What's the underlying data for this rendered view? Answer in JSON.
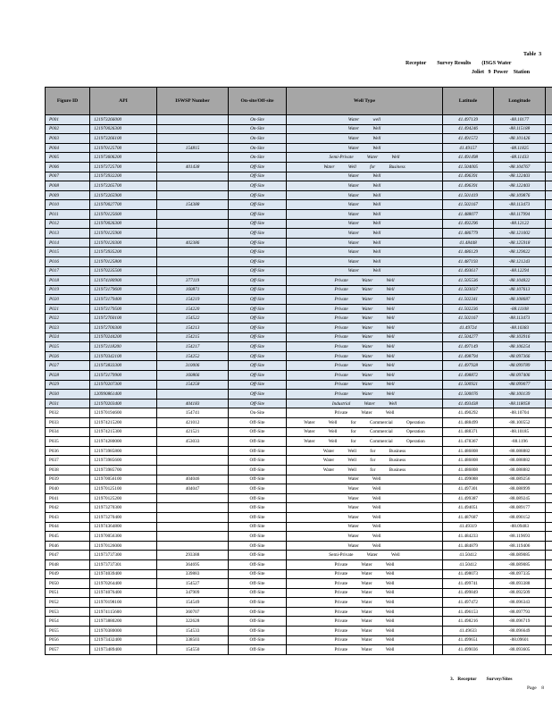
{
  "header": {
    "table_label": "Table  3",
    "title_line1": "Receptor        Survey Results        (ISGS Water",
    "title_line2": "Joliet   9  Power    Station"
  },
  "columns": [
    "Figure   ID",
    "API",
    "ISWSP    Number",
    "On-site/Off-site",
    "Well   Type",
    "Latitude",
    "Longitude",
    ""
  ],
  "rows": [
    [
      "P001",
      "121973266000",
      "",
      "On-Site",
      "Water well",
      "41.497139",
      "-88.10177"
    ],
    [
      "P002",
      "121970026300",
      "",
      "On-Site",
      "Water Well",
      "41.494246",
      "-88.115188"
    ],
    [
      "P003",
      "121973266100",
      "",
      "On-Site",
      "Water Well",
      "41.491572",
      "-88.101426"
    ],
    [
      "P004",
      "121970125700",
      "154815",
      "On-Site",
      "Water Well",
      "41.49157",
      "-88.11825"
    ],
    [
      "P005",
      "121973606200",
      "",
      "On-Site",
      "Semi-Private Water Well",
      "41.491498",
      "-88.11433"
    ],
    [
      "P006",
      "121973725700",
      "401438",
      "Off-Site",
      "Water Well for Business",
      "41.504005",
      "-88.104767"
    ],
    [
      "P007",
      "121973932200",
      "",
      "Off-Site",
      "Water Well",
      "41.496391",
      "-88.122403"
    ],
    [
      "P008",
      "121973265700",
      "",
      "Off-Site",
      "Water Well",
      "41.496391",
      "-88.122403"
    ],
    [
      "P009",
      "121973265900",
      "",
      "Off-Site",
      "Water Well",
      "41.501419",
      "-88.109876"
    ],
    [
      "P010",
      "121970027700",
      "154388",
      "Off-Site",
      "Water Well",
      "41.502167",
      "-88.113473"
    ],
    [
      "P011",
      "121970125600",
      "",
      "Off-Site",
      "Water Well",
      "41.488077",
      "-88.117994"
    ],
    [
      "P012",
      "121970026300",
      "",
      "Off-Site",
      "Water Well",
      "41.492296",
      "-88.12122"
    ],
    [
      "P013",
      "121970125900",
      "",
      "Off-Site",
      "Water Well",
      "41.486779",
      "-88.121002"
    ],
    [
      "P014",
      "121970120300",
      "402386",
      "Off-Site",
      "Water Well",
      "41.48448",
      "-88.125918"
    ],
    [
      "P015",
      "121973935200",
      "",
      "Off-Site",
      "Water Well",
      "41.486129",
      "-88.129022"
    ],
    [
      "P016",
      "121970125800",
      "",
      "Off-Site",
      "Water Well",
      "41.487193",
      "-88.121243"
    ],
    [
      "P017",
      "121970235500",
      "",
      "Off-Site",
      "Water Well",
      "41.493617",
      "-88.12294"
    ],
    [
      "P018",
      "121974180900",
      "377119",
      "Off-Site",
      "Private Water Well",
      "41.505536",
      "-88.104822"
    ],
    [
      "P019",
      "121973179600",
      "160871",
      "Off-Site",
      "Private Water Well",
      "41.503037",
      "-88.107613"
    ],
    [
      "P020",
      "121973179400",
      "154219",
      "Off-Site",
      "Private Water Well",
      "41.502341",
      "-88.108687"
    ],
    [
      "P021",
      "121973179500",
      "154220",
      "Off-Site",
      "Private Water Well",
      "41.502236",
      "-88.11108"
    ],
    [
      "P022",
      "121972760100",
      "154522",
      "Off-Site",
      "Private Water Well",
      "41.502167",
      "-88.113473"
    ],
    [
      "P023",
      "121972700300",
      "154213",
      "Off-Site",
      "Private Water Well",
      "41.49724",
      "-88.10383"
    ],
    [
      "P024",
      "121970244200",
      "154215",
      "Off-Site",
      "Private Water Well",
      "41.504277",
      "-88.103916"
    ],
    [
      "P025",
      "121973118200",
      "154217",
      "Off-Site",
      "Private Water Well",
      "41.497149",
      "-88.106254"
    ],
    [
      "P026",
      "121970342100",
      "154252",
      "Off-Site",
      "Private Water Well",
      "41.498794",
      "-88.097366"
    ],
    [
      "P027",
      "121973833300",
      "310006",
      "Off-Site",
      "Private Water Well",
      "41.497928",
      "-88.099789"
    ],
    [
      "P028",
      "121973179900",
      "160866",
      "Off-Site",
      "Private Water Well",
      "41.498872",
      "-88.097406"
    ],
    [
      "P029",
      "121970207300",
      "154258",
      "Off-Site",
      "Private Water Well",
      "41.500921",
      "-88.099077"
    ],
    [
      "P030",
      "120990861400",
      "",
      "Off-Site",
      "Private Water Well",
      "41.500076",
      "-88.100139"
    ],
    [
      "P031",
      "121970203400",
      "404183",
      "Off-Site",
      "Industrial Water Well",
      "41.493438",
      "-88.118058"
    ],
    [
      "P032",
      "121970194600",
      "154741",
      "On-Site",
      "Private Water Well",
      "41.490292",
      "-88.10704"
    ],
    [
      "P033",
      "121974215200",
      "421012",
      "Off-Site",
      "Water Well for Commercial Operation",
      "41.488499",
      "-88.100552"
    ],
    [
      "P034",
      "121974215300",
      "421521",
      "Off-Site",
      "Water Well for Commercial Operation",
      "41.488371",
      "-88.10185"
    ],
    [
      "P035",
      "121974280000",
      "453033",
      "Off-Site",
      "Water Well for Commercial Operation",
      "41.478367",
      "-88.1196"
    ],
    [
      "P036",
      "121973985800",
      "",
      "Off-Site",
      "Water Well for Business",
      "41.486808",
      "-88.088882"
    ],
    [
      "P037",
      "121973985600",
      "",
      "Off-Site",
      "Water Well for Business",
      "41.486808",
      "-88.088882"
    ],
    [
      "P038",
      "121973985700",
      "",
      "Off-Site",
      "Water Well for Business",
      "41.486808",
      "-88.088882"
    ],
    [
      "P039",
      "121970056100",
      "404046",
      "Off-Site",
      "Water Well",
      "41.499088",
      "-88.089256"
    ],
    [
      "P040",
      "121970125100",
      "404047",
      "Off-Site",
      "Water Well",
      "41.497301",
      "-88.088999"
    ],
    [
      "P041",
      "121970125200",
      "",
      "Off-Site",
      "Water Well",
      "41.499387",
      "-88.089245"
    ],
    [
      "P042",
      "121973270300",
      "",
      "Off-Site",
      "Water Well",
      "41.494051",
      "-88.089177"
    ],
    [
      "P043",
      "121973270400",
      "",
      "Off-Site",
      "Water Well",
      "41.487687",
      "-88.090152"
    ],
    [
      "P044",
      "121974364800",
      "",
      "Off-Site",
      "Water Well",
      "41.49319",
      "-88.09483"
    ],
    [
      "P045",
      "121970056300",
      "",
      "Off-Site",
      "Water Well",
      "41.484233",
      "-88.119693"
    ],
    [
      "P046",
      "121970126000",
      "",
      "Off-Site",
      "Water Well",
      "41.484879",
      "-88.119406"
    ],
    [
      "P047",
      "121973737300",
      "293388",
      "Off-Site",
      "Semi-Private Water Well",
      "41.50412",
      "-88.089085"
    ],
    [
      "P048",
      "121973737301",
      "364695",
      "Off-Site",
      "Private Water Well",
      "41.50412",
      "-88.089085"
    ],
    [
      "P049",
      "121974039400",
      "339883",
      "Off-Site",
      "Private Water Well",
      "41.498073",
      "-88.097335"
    ],
    [
      "P050",
      "121970264400",
      "154527",
      "Off-Site",
      "Private Water Well",
      "41.499741",
      "-88.093388"
    ],
    [
      "P051",
      "121974076400",
      "347909",
      "Off-Site",
      "Private Water Well",
      "41.499849",
      "-88.092509"
    ],
    [
      "P052",
      "121970198100",
      "154549",
      "Off-Site",
      "Private Water Well",
      "41.497472",
      "-88.096343"
    ],
    [
      "P053",
      "121974115600",
      "360707",
      "Off-Site",
      "Private Water Well",
      "41.496153",
      "-88.097793"
    ],
    [
      "P054",
      "121973880200",
      "322628",
      "Off-Site",
      "Private Water Well",
      "41.498216",
      "-88.096719"
    ],
    [
      "P055",
      "121970380000",
      "154533",
      "Off-Site",
      "Private Water Well",
      "41.49633",
      "-88.096649"
    ],
    [
      "P056",
      "121973432400",
      "338503",
      "Off-Site",
      "Private Water Well",
      "41.499651",
      "-88.09601"
    ],
    [
      "P057",
      "121973489400",
      "154550",
      "Off-Site",
      "Private Water Well",
      "41.499036",
      "-88.093605"
    ]
  ],
  "shaded_row_count": 31,
  "colors": {
    "header_bg": "#a6a6a6",
    "shaded_row_bg": "#dce6f1"
  },
  "footer": {
    "section": "3.   Receptor        Survey/Sites",
    "page": "Page    8"
  }
}
